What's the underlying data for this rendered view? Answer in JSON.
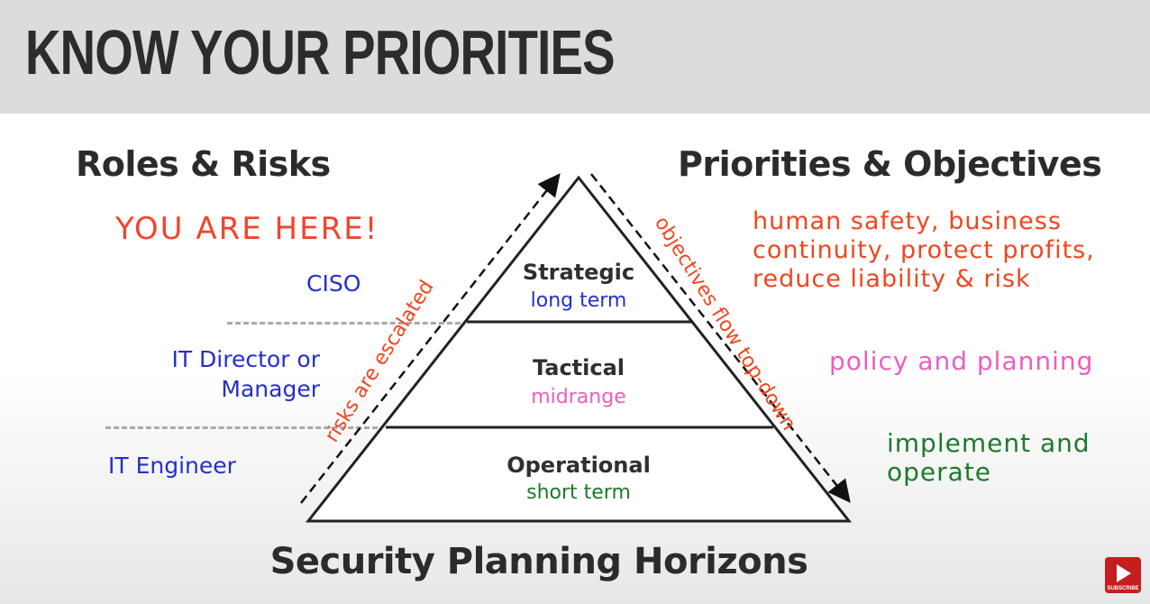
{
  "header": {
    "title": "KNOW YOUR PRIORITIES"
  },
  "left_heading": "Roles & Risks",
  "right_heading": "Priorities & Objectives",
  "you_are_here": "YOU ARE HERE!",
  "roles": {
    "strategic": "CISO",
    "tactical": "IT Director or Manager",
    "operational": "IT Engineer"
  },
  "tiers": [
    {
      "name": "Strategic",
      "term": "long term",
      "term_color": "#2430c8"
    },
    {
      "name": "Tactical",
      "term": "midrange",
      "term_color": "#ea5fbf"
    },
    {
      "name": "Operational",
      "term": "short term",
      "term_color": "#1d7a2b"
    }
  ],
  "arrows": {
    "left": {
      "label": "risks are escalated",
      "color": "#f0461f"
    },
    "right": {
      "label": "objectives flow top-down",
      "color": "#f0461f"
    }
  },
  "objectives": {
    "strategic": "human safety, business continuity, protect profits, reduce liability & risk",
    "tactical": "policy and planning",
    "operational": "implement and operate"
  },
  "footer_title": "Security Planning Horizons",
  "subscribe_badge": "SUBSCRIBE",
  "colors": {
    "accent_red": "#f0461f",
    "role_blue": "#2430c8",
    "pink": "#ea5fbf",
    "green": "#1d7a2b",
    "header_bg": "#dcdcdc"
  }
}
